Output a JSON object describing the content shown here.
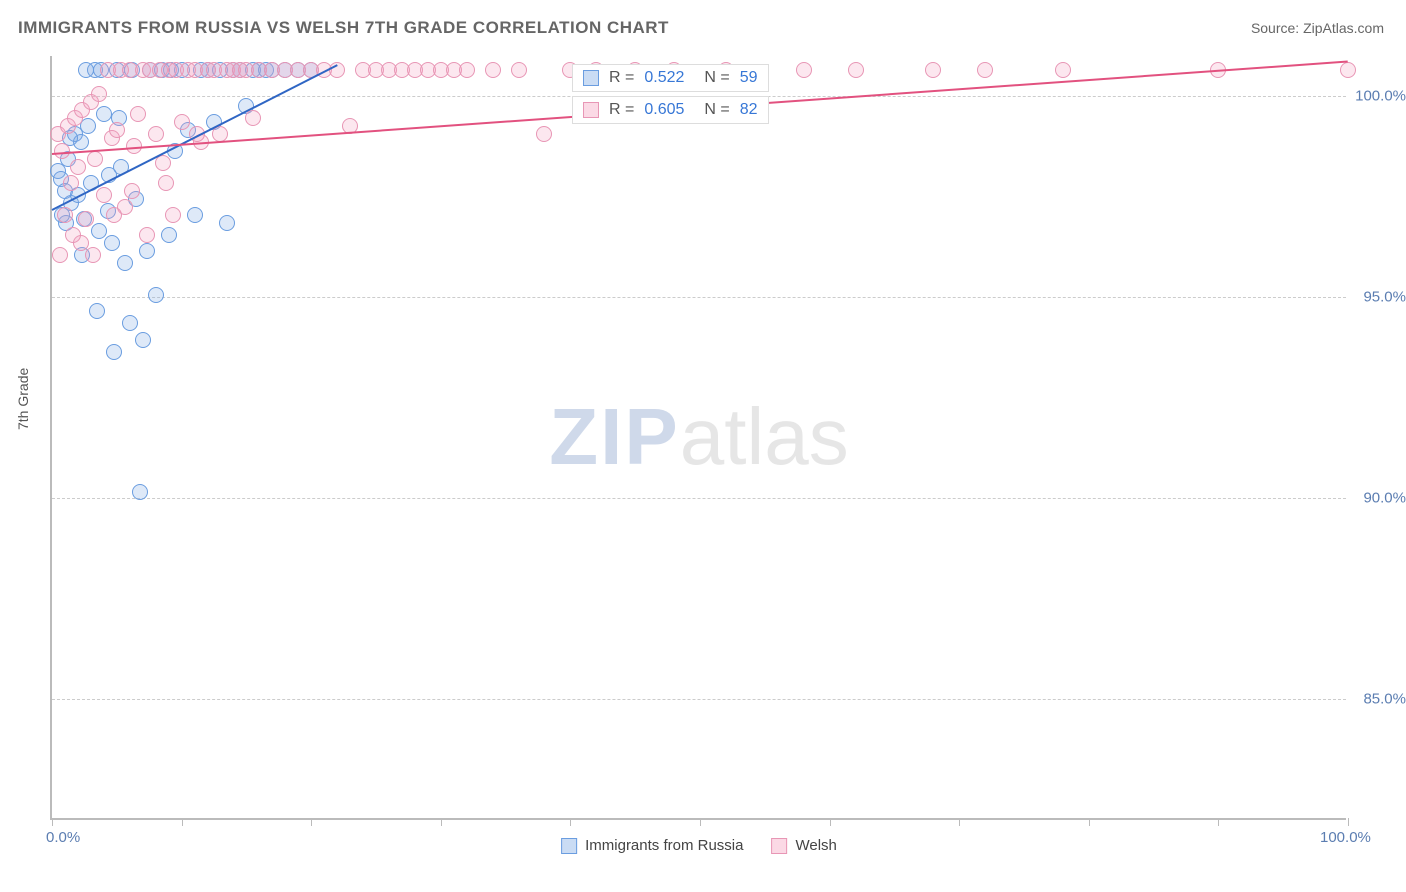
{
  "title": "IMMIGRANTS FROM RUSSIA VS WELSH 7TH GRADE CORRELATION CHART",
  "source": "Source: ZipAtlas.com",
  "ylabel": "7th Grade",
  "watermark": {
    "bold": "ZIP",
    "light": "atlas"
  },
  "chart": {
    "type": "scatter",
    "background_color": "#ffffff",
    "grid_color": "#cccccc",
    "axis_color": "#bbbbbb",
    "label_fontsize": 15,
    "title_fontsize": 17,
    "xlim": [
      0,
      100
    ],
    "ylim": [
      82,
      101
    ],
    "xtick_positions": [
      0,
      10,
      20,
      30,
      40,
      50,
      60,
      70,
      80,
      90,
      100
    ],
    "xtick_labels": {
      "0": "0.0%",
      "100": "100.0%"
    },
    "ytick_positions": [
      85,
      90,
      95,
      100
    ],
    "ytick_labels": [
      "85.0%",
      "90.0%",
      "95.0%",
      "100.0%"
    ],
    "marker_radius": 8,
    "marker_opacity": 0.25,
    "series": [
      {
        "key": "a",
        "label": "Immigrants from Russia",
        "color_fill": "#7aa8e4",
        "color_stroke": "#6a9de0",
        "trend_color": "#2f66c4",
        "R": "0.522",
        "N": "59",
        "trend": {
          "x1": 0,
          "y1": 97.2,
          "x2": 22,
          "y2": 100.8
        },
        "points": [
          [
            0.5,
            98.1
          ],
          [
            0.7,
            97.9
          ],
          [
            1.0,
            97.6
          ],
          [
            1.2,
            98.4
          ],
          [
            1.5,
            97.3
          ],
          [
            1.8,
            99.0
          ],
          [
            2.0,
            97.5
          ],
          [
            2.2,
            98.8
          ],
          [
            2.5,
            96.9
          ],
          [
            2.8,
            99.2
          ],
          [
            3.0,
            97.8
          ],
          [
            3.3,
            100.6
          ],
          [
            3.6,
            96.6
          ],
          [
            4.0,
            99.5
          ],
          [
            4.3,
            97.1
          ],
          [
            4.6,
            96.3
          ],
          [
            5.0,
            100.6
          ],
          [
            5.3,
            98.2
          ],
          [
            5.6,
            95.8
          ],
          [
            6.0,
            94.3
          ],
          [
            6.2,
            100.6
          ],
          [
            6.5,
            97.4
          ],
          [
            7.0,
            93.9
          ],
          [
            7.3,
            96.1
          ],
          [
            7.6,
            100.6
          ],
          [
            8.0,
            95.0
          ],
          [
            8.5,
            100.6
          ],
          [
            9.0,
            96.5
          ],
          [
            9.2,
            100.6
          ],
          [
            9.5,
            98.6
          ],
          [
            10.0,
            100.6
          ],
          [
            10.5,
            99.1
          ],
          [
            11.0,
            97.0
          ],
          [
            11.5,
            100.6
          ],
          [
            12.0,
            100.6
          ],
          [
            12.5,
            99.3
          ],
          [
            13.0,
            100.6
          ],
          [
            13.5,
            96.8
          ],
          [
            14.0,
            100.6
          ],
          [
            14.5,
            100.6
          ],
          [
            15.0,
            99.7
          ],
          [
            15.5,
            100.6
          ],
          [
            16.0,
            100.6
          ],
          [
            16.5,
            100.6
          ],
          [
            17.0,
            100.6
          ],
          [
            18.0,
            100.6
          ],
          [
            19.0,
            100.6
          ],
          [
            20.0,
            100.6
          ],
          [
            3.5,
            94.6
          ],
          [
            4.8,
            93.6
          ],
          [
            6.8,
            90.1
          ],
          [
            2.3,
            96.0
          ],
          [
            1.1,
            96.8
          ],
          [
            0.8,
            97.0
          ],
          [
            1.4,
            98.9
          ],
          [
            2.6,
            100.6
          ],
          [
            3.8,
            100.6
          ],
          [
            4.4,
            98.0
          ],
          [
            5.2,
            99.4
          ]
        ]
      },
      {
        "key": "b",
        "label": "Welsh",
        "color_fill": "#f4a0be",
        "color_stroke": "#e896b5",
        "trend_color": "#e2517f",
        "R": "0.605",
        "N": "82",
        "trend": {
          "x1": 0,
          "y1": 98.6,
          "x2": 100,
          "y2": 100.9
        },
        "points": [
          [
            0.5,
            99.0
          ],
          [
            0.8,
            98.6
          ],
          [
            1.2,
            99.2
          ],
          [
            1.5,
            97.8
          ],
          [
            1.8,
            99.4
          ],
          [
            2.0,
            98.2
          ],
          [
            2.3,
            99.6
          ],
          [
            2.6,
            96.9
          ],
          [
            3.0,
            99.8
          ],
          [
            3.3,
            98.4
          ],
          [
            3.6,
            100.0
          ],
          [
            4.0,
            97.5
          ],
          [
            4.3,
            100.6
          ],
          [
            4.6,
            98.9
          ],
          [
            5.0,
            99.1
          ],
          [
            5.3,
            100.6
          ],
          [
            5.6,
            97.2
          ],
          [
            6.0,
            100.6
          ],
          [
            6.3,
            98.7
          ],
          [
            6.6,
            99.5
          ],
          [
            7.0,
            100.6
          ],
          [
            7.3,
            96.5
          ],
          [
            7.6,
            100.6
          ],
          [
            8.0,
            99.0
          ],
          [
            8.3,
            100.6
          ],
          [
            8.6,
            98.3
          ],
          [
            9.0,
            100.6
          ],
          [
            9.3,
            97.0
          ],
          [
            9.6,
            100.6
          ],
          [
            10.0,
            99.3
          ],
          [
            10.5,
            100.6
          ],
          [
            11.0,
            100.6
          ],
          [
            11.5,
            98.8
          ],
          [
            12.0,
            100.6
          ],
          [
            12.5,
            100.6
          ],
          [
            13.0,
            99.0
          ],
          [
            13.5,
            100.6
          ],
          [
            14.0,
            100.6
          ],
          [
            14.5,
            100.6
          ],
          [
            15.0,
            100.6
          ],
          [
            15.5,
            99.4
          ],
          [
            16.0,
            100.6
          ],
          [
            17.0,
            100.6
          ],
          [
            18.0,
            100.6
          ],
          [
            19.0,
            100.6
          ],
          [
            20.0,
            100.6
          ],
          [
            21.0,
            100.6
          ],
          [
            22.0,
            100.6
          ],
          [
            23.0,
            99.2
          ],
          [
            24.0,
            100.6
          ],
          [
            25.0,
            100.6
          ],
          [
            26.0,
            100.6
          ],
          [
            27.0,
            100.6
          ],
          [
            28.0,
            100.6
          ],
          [
            29.0,
            100.6
          ],
          [
            30.0,
            100.6
          ],
          [
            31.0,
            100.6
          ],
          [
            32.0,
            100.6
          ],
          [
            34.0,
            100.6
          ],
          [
            36.0,
            100.6
          ],
          [
            38.0,
            99.0
          ],
          [
            40.0,
            100.6
          ],
          [
            42.0,
            100.6
          ],
          [
            45.0,
            100.6
          ],
          [
            48.0,
            100.6
          ],
          [
            52.0,
            100.6
          ],
          [
            58.0,
            100.6
          ],
          [
            62.0,
            100.6
          ],
          [
            68.0,
            100.6
          ],
          [
            72.0,
            100.6
          ],
          [
            78.0,
            100.6
          ],
          [
            90.0,
            100.6
          ],
          [
            100.0,
            100.6
          ],
          [
            1.0,
            97.0
          ],
          [
            2.2,
            96.3
          ],
          [
            0.6,
            96.0
          ],
          [
            1.6,
            96.5
          ],
          [
            3.2,
            96.0
          ],
          [
            4.8,
            97.0
          ],
          [
            6.2,
            97.6
          ],
          [
            8.8,
            97.8
          ],
          [
            11.2,
            99.0
          ]
        ]
      }
    ],
    "legend_top": [
      {
        "series": "a",
        "R_label": "R =",
        "N_label": "N ="
      },
      {
        "series": "b",
        "R_label": "R =",
        "N_label": "N ="
      }
    ]
  }
}
